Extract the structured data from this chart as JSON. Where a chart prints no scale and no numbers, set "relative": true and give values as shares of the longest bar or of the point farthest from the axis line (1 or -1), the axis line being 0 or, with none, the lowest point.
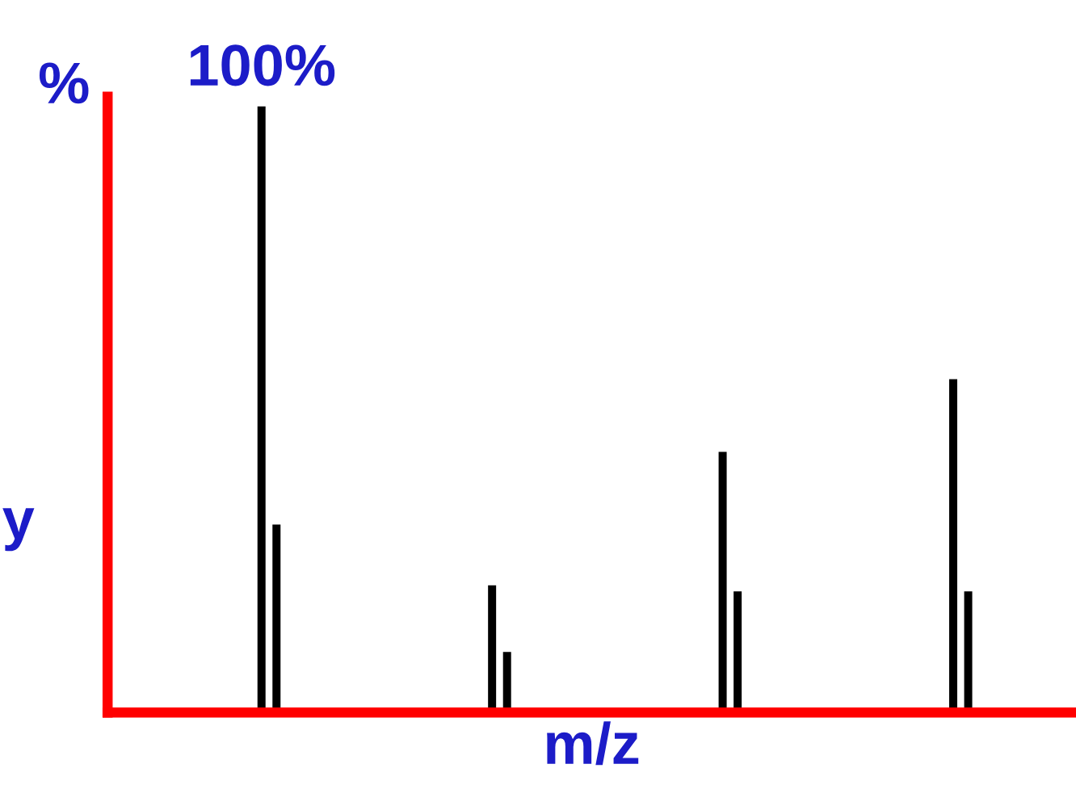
{
  "chart_data": {
    "type": "bar",
    "relative": true,
    "xlabel": "m/z",
    "ylabel": "%",
    "tick_labels": false,
    "annotations": [
      "100%",
      "y"
    ],
    "categories": [
      null,
      null,
      null,
      null
    ],
    "series": [
      {
        "color": "#000000",
        "values": [
          1.0,
          0.21,
          0.43,
          0.55
        ]
      },
      {
        "color": "#000000",
        "values": [
          0.31,
          0.1,
          0.2,
          0.2
        ]
      }
    ]
  }
}
